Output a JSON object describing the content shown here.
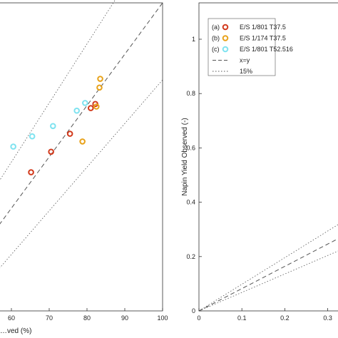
{
  "chart_data": [
    {
      "type": "scatter",
      "xlabel": "…ved (%)",
      "ylabel": "",
      "xlim": [
        40,
        100
      ],
      "ylim": [
        40,
        100
      ],
      "xticks": [
        60,
        70,
        80,
        90,
        100
      ],
      "grid": false,
      "series": [
        {
          "name": "(a)",
          "color": "#d23a1c",
          "x": [
            65.2,
            70.5,
            75.5,
            81.0,
            82.2
          ],
          "y": [
            67.0,
            71.0,
            74.5,
            79.5,
            80.3
          ]
        },
        {
          "name": "(b)",
          "color": "#e8a21a",
          "x": [
            78.8,
            83.3,
            83.5,
            82.5
          ],
          "y": [
            73.0,
            83.5,
            85.2,
            79.8
          ]
        },
        {
          "name": "(c)",
          "color": "#7fe3f0",
          "x": [
            60.5,
            65.5,
            71.0,
            77.3,
            79.5
          ],
          "y": [
            72.0,
            74.0,
            76.0,
            79.0,
            80.5
          ]
        }
      ],
      "lines": [
        {
          "name": "x=y",
          "style": "dashed"
        },
        {
          "name": "15%",
          "style": "dotted"
        }
      ]
    },
    {
      "type": "scatter",
      "xlabel": "",
      "ylabel": "Napin Yield Observed (-)",
      "xlim": [
        0,
        0.45
      ],
      "ylim": [
        0,
        1.1
      ],
      "xticks": [
        0,
        0.1,
        0.2,
        0.3
      ],
      "yticks": [
        0,
        0.2,
        0.4,
        0.6,
        0.8,
        1
      ],
      "grid": false,
      "legend_position": "top-left",
      "legend": [
        {
          "key": "(a)",
          "label": "E/S 1/801 T37.5",
          "color": "#d23a1c",
          "marker": "circle"
        },
        {
          "key": "(b)",
          "label": "E/S 1/174 T37.5",
          "color": "#e8a21a",
          "marker": "circle"
        },
        {
          "key": "(c)",
          "label": "E/S 1/801 T52.516",
          "color": "#7fe3f0",
          "marker": "circle"
        },
        {
          "key": "",
          "label": "x=y",
          "color": "#555555",
          "marker": "dashed"
        },
        {
          "key": "",
          "label": "15%",
          "color": "#555555",
          "marker": "dotted"
        }
      ],
      "series": []
    }
  ]
}
